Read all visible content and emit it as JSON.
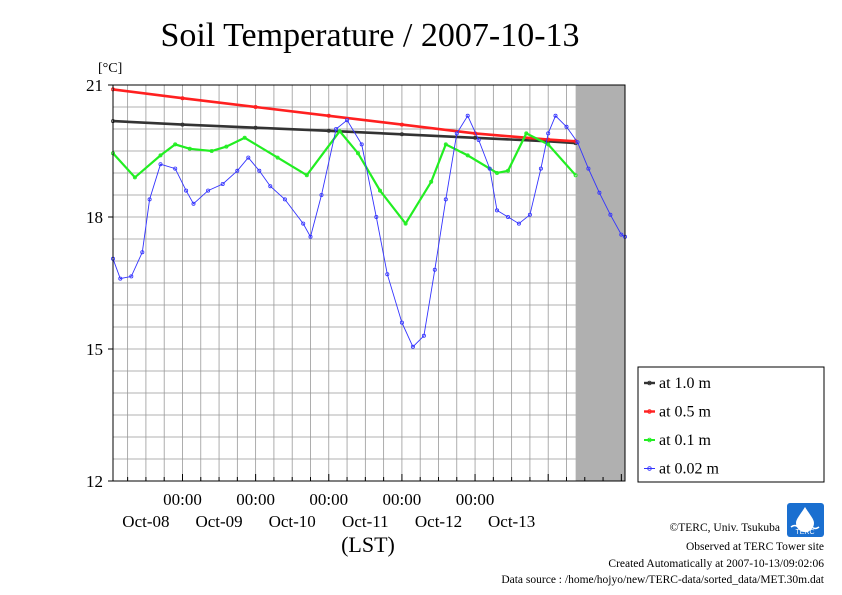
{
  "chart_data": {
    "type": "line",
    "title": "Soil Temperature / 2007-10-13",
    "unit_label": "[°C]",
    "xlabel": "(LST)",
    "ylim": [
      12,
      21
    ],
    "yticks": [
      12,
      15,
      18,
      21
    ],
    "xlim": [
      -0.95,
      6.05
    ],
    "time_ticks": [
      "00:00",
      "00:00",
      "00:00",
      "00:00",
      "00:00"
    ],
    "date_labels": [
      "Oct-08",
      "Oct-09",
      "Oct-10",
      "Oct-11",
      "Oct-12",
      "Oct-13"
    ],
    "no_data_from": 5.375,
    "grid": true,
    "legend_position": "right",
    "series": [
      {
        "name": "at 1.0 m",
        "color": "#333333",
        "points": [
          [
            -0.95,
            20.18
          ],
          [
            0,
            20.1
          ],
          [
            1,
            20.03
          ],
          [
            2,
            19.96
          ],
          [
            3,
            19.88
          ],
          [
            4,
            19.8
          ],
          [
            5,
            19.72
          ],
          [
            5.375,
            19.68
          ]
        ]
      },
      {
        "name": "at 0.5 m",
        "color": "#ff2020",
        "points": [
          [
            -0.95,
            20.9
          ],
          [
            0,
            20.7
          ],
          [
            1,
            20.5
          ],
          [
            2,
            20.3
          ],
          [
            3,
            20.1
          ],
          [
            4,
            19.9
          ],
          [
            5,
            19.76
          ],
          [
            5.375,
            19.72
          ]
        ]
      },
      {
        "name": "at 0.1 m",
        "color": "#22ee22",
        "points": [
          [
            -0.95,
            19.45
          ],
          [
            -0.65,
            18.9
          ],
          [
            -0.3,
            19.4
          ],
          [
            -0.1,
            19.65
          ],
          [
            0.1,
            19.55
          ],
          [
            0.4,
            19.5
          ],
          [
            0.6,
            19.6
          ],
          [
            0.85,
            19.8
          ],
          [
            1.3,
            19.35
          ],
          [
            1.7,
            18.95
          ],
          [
            2.15,
            19.95
          ],
          [
            2.4,
            19.45
          ],
          [
            2.7,
            18.6
          ],
          [
            3.05,
            17.85
          ],
          [
            3.4,
            18.8
          ],
          [
            3.6,
            19.65
          ],
          [
            3.9,
            19.4
          ],
          [
            4.3,
            19.0
          ],
          [
            4.45,
            19.05
          ],
          [
            4.7,
            19.9
          ],
          [
            5.0,
            19.65
          ],
          [
            5.375,
            18.95
          ]
        ]
      },
      {
        "name": "at 0.02 m",
        "color": "#3333ff",
        "points": [
          [
            -0.95,
            17.05
          ],
          [
            -0.85,
            16.6
          ],
          [
            -0.7,
            16.65
          ],
          [
            -0.55,
            17.2
          ],
          [
            -0.45,
            18.4
          ],
          [
            -0.3,
            19.2
          ],
          [
            -0.1,
            19.1
          ],
          [
            0.05,
            18.6
          ],
          [
            0.15,
            18.3
          ],
          [
            0.35,
            18.6
          ],
          [
            0.55,
            18.75
          ],
          [
            0.75,
            19.05
          ],
          [
            0.9,
            19.35
          ],
          [
            1.05,
            19.05
          ],
          [
            1.2,
            18.7
          ],
          [
            1.4,
            18.4
          ],
          [
            1.65,
            17.85
          ],
          [
            1.75,
            17.55
          ],
          [
            1.9,
            18.5
          ],
          [
            2.1,
            20.0
          ],
          [
            2.25,
            20.2
          ],
          [
            2.45,
            19.65
          ],
          [
            2.65,
            18.0
          ],
          [
            2.8,
            16.7
          ],
          [
            3.0,
            15.6
          ],
          [
            3.15,
            15.05
          ],
          [
            3.3,
            15.3
          ],
          [
            3.45,
            16.8
          ],
          [
            3.6,
            18.4
          ],
          [
            3.75,
            19.9
          ],
          [
            3.9,
            20.3
          ],
          [
            4.05,
            19.75
          ],
          [
            4.2,
            19.1
          ],
          [
            4.3,
            18.15
          ],
          [
            4.45,
            18.0
          ],
          [
            4.6,
            17.85
          ],
          [
            4.75,
            18.05
          ],
          [
            4.9,
            19.1
          ],
          [
            5.0,
            19.9
          ],
          [
            5.1,
            20.3
          ],
          [
            5.25,
            20.05
          ],
          [
            5.4,
            19.7
          ],
          [
            5.55,
            19.1
          ],
          [
            5.7,
            18.55
          ],
          [
            5.85,
            18.05
          ],
          [
            6.0,
            17.6
          ],
          [
            6.05,
            17.55
          ]
        ]
      }
    ]
  },
  "credits": {
    "copyright": "©TERC, Univ. Tsukuba",
    "observed": "Observed at TERC Tower site",
    "created": "Created Automatically at 2007-10-13/09:02:06",
    "source": "Data source : /home/hojyo/new/TERC-data/sorted_data/MET.30m.dat",
    "logo_text": "TERC"
  }
}
